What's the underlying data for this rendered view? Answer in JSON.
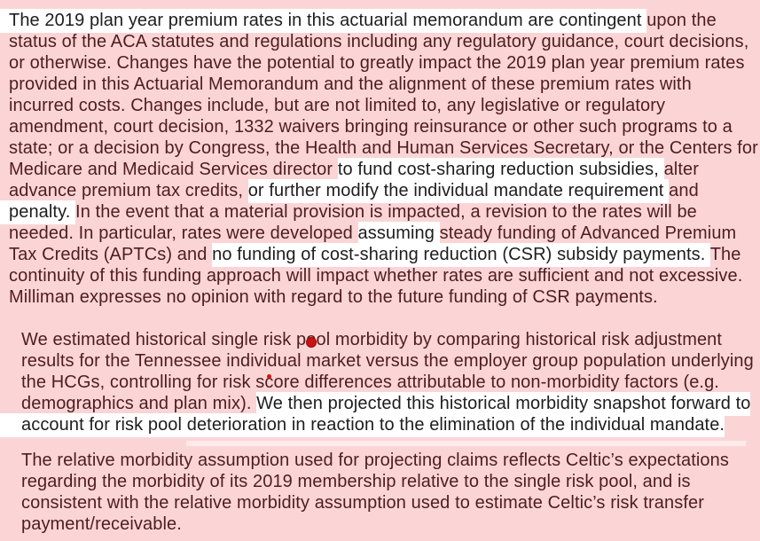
{
  "document": {
    "colors": {
      "background_pink": "#fbd5d6",
      "highlight_white": "#ffffff",
      "text_on_pink": "#4f1c1f",
      "text_on_highlight": "#1d1d1d",
      "red_dot": "#ce1111",
      "artifact_strip": "#fdeaea"
    },
    "paragraphs": [
      {
        "name": "aca-contingency-disclaimer",
        "lines": [
          [
            {
              "t": "The 2019 plan year premium rates in this actuarial memorandum are contingent ",
              "hl": true
            },
            {
              "t": "upon the",
              "hl": false
            }
          ],
          [
            {
              "t": "status of the ACA statutes and regulations including any regulatory guidance, court decisions,",
              "hl": false
            }
          ],
          [
            {
              "t": "or otherwise. Changes have the potential to greatly impact the 2019 plan year premium rates",
              "hl": false
            }
          ],
          [
            {
              "t": "provided in this Actuarial Memorandum and the alignment of these premium rates with",
              "hl": false
            }
          ],
          [
            {
              "t": "incurred costs. Changes include, but are not limited to, any legislative or regulatory",
              "hl": false
            }
          ],
          [
            {
              "t": "amendment, court decision, 1332 waivers bringing reinsurance or other such programs to a",
              "hl": false
            }
          ],
          [
            {
              "t": "state; or a decision by Congress, the Health and Human Services Secretary, or the Centers for",
              "hl": false
            }
          ],
          [
            {
              "t": "Medicare and Medicaid Services director ",
              "hl": false
            },
            {
              "t": "to fund cost-sharing reduction subsidies, ",
              "hl": true
            },
            {
              "t": "alter",
              "hl": false
            }
          ],
          [
            {
              "t": "advance premium tax credits, ",
              "hl": false
            },
            {
              "t": "or further modify the individual mandate requirement ",
              "hl": true
            },
            {
              "t": "and",
              "hl": false
            }
          ],
          [
            {
              "t": "penalty. ",
              "hl": true
            },
            {
              "t": "In the event that a material provision is impacted, a revision to the rates will be",
              "hl": false
            }
          ],
          [
            {
              "t": "needed. In particular, rates were developed ",
              "hl": false
            },
            {
              "t": "assuming ",
              "hl": true
            },
            {
              "t": "steady funding of Advanced Premium",
              "hl": false
            }
          ],
          [
            {
              "t": "Tax Credits (APTCs) and ",
              "hl": false
            },
            {
              "t": "no funding of cost-sharing reduction (CSR) subsidy payments. ",
              "hl": true
            },
            {
              "t": "The",
              "hl": false
            }
          ],
          [
            {
              "t": "continuity of this funding approach will impact whether rates are sufficient and not excessive.",
              "hl": false
            }
          ],
          [
            {
              "t": "Milliman expresses no opinion with regard to the future funding of CSR payments.",
              "hl": false
            }
          ]
        ]
      },
      {
        "name": "historical-morbidity-estimate",
        "lines": [
          [
            {
              "t": "We estimated historical single risk p",
              "hl": false
            },
            {
              "t": "o",
              "hl": false,
              "mark": "red-dot-cover"
            },
            {
              "t": "ol morbidity by comparing historical risk adjustment",
              "hl": false
            }
          ],
          [
            {
              "t": "results for the Tennessee individual market versus the employer group population underlying",
              "hl": false
            }
          ],
          [
            {
              "t": "the HCGs, controlling for risk s",
              "hl": false
            },
            {
              "t": "c",
              "hl": false,
              "mark": "red-dot-above"
            },
            {
              "t": "ore differences attributable to non-morbidity factors (e.g.",
              "hl": false
            }
          ],
          [
            {
              "t": "demographics and plan mix). ",
              "hl": false
            },
            {
              "t": "We then projected this historical morbidity snapshot forward to",
              "hl": true
            }
          ],
          [
            {
              "t": "account for risk pool deterioration in reaction to the elimination of the individual mandate.",
              "hl": true
            }
          ]
        ]
      },
      {
        "name": "relative-morbidity-assumption",
        "lines": [
          [
            {
              "t": "The relative morbidity assumption used for projecting claims reflects Celtic’s expectations",
              "hl": false
            }
          ],
          [
            {
              "t": "regarding the morbidity of its 2019 membership relative to the single risk pool, and is",
              "hl": false
            }
          ],
          [
            {
              "t": "consistent with the relative morbidity assumption used to estimate Celtic’s risk transfer",
              "hl": false
            }
          ],
          [
            {
              "t": "payment/receivable.",
              "hl": false
            }
          ]
        ]
      }
    ]
  }
}
